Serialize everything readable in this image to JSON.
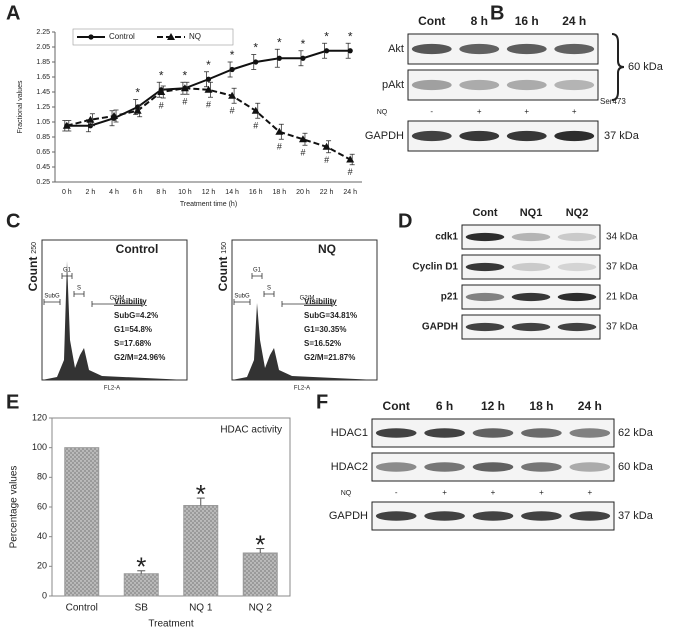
{
  "chart_data": [
    {
      "type": "line",
      "panel": "A",
      "x_label": "Treatment time (h)",
      "y_label": "Fractional values",
      "categories": [
        "0 h",
        "2 h",
        "4 h",
        "6 h",
        "8 h",
        "10 h",
        "12 h",
        "14 h",
        "16 h",
        "18 h",
        "20 h",
        "22 h",
        "24 h"
      ],
      "ylim": [
        0.25,
        2.25
      ],
      "yticks": [
        0.25,
        0.45,
        0.65,
        0.85,
        1.05,
        1.25,
        1.45,
        1.65,
        1.85,
        2.05,
        2.25
      ],
      "series": [
        {
          "name": "Control",
          "color": "#111111",
          "line_style": "solid",
          "marker": "circle",
          "values": [
            1.0,
            1.0,
            1.1,
            1.25,
            1.48,
            1.5,
            1.62,
            1.75,
            1.85,
            1.9,
            1.9,
            2.0,
            2.0
          ],
          "errors": [
            0.07,
            0.08,
            0.1,
            0.1,
            0.1,
            0.08,
            0.1,
            0.1,
            0.1,
            0.12,
            0.1,
            0.1,
            0.1
          ],
          "annotations": [
            null,
            null,
            null,
            "*",
            "*",
            "*",
            "*",
            "*",
            "*",
            "*",
            "*",
            "*",
            "*"
          ]
        },
        {
          "name": "NQ",
          "color": "#111111",
          "line_style": "dashed",
          "marker": "triangle",
          "values": [
            1.0,
            1.08,
            1.13,
            1.2,
            1.45,
            1.5,
            1.48,
            1.4,
            1.2,
            0.92,
            0.82,
            0.72,
            0.55
          ],
          "errors": [
            0.07,
            0.08,
            0.08,
            0.08,
            0.08,
            0.08,
            0.1,
            0.1,
            0.1,
            0.1,
            0.08,
            0.08,
            0.07
          ],
          "annotations": [
            null,
            null,
            null,
            null,
            "#",
            "#",
            "#",
            "#",
            "#",
            "#",
            "#",
            "#",
            "#"
          ]
        }
      ]
    },
    {
      "type": "bar",
      "panel": "E",
      "title": "HDAC activity",
      "x_label": "Treatment",
      "y_label": "Percentage values",
      "categories": [
        "Control",
        "SB",
        "NQ 1",
        "NQ 2"
      ],
      "values": [
        100,
        15,
        61,
        29
      ],
      "errors": [
        0,
        2,
        5,
        3
      ],
      "annotations": [
        null,
        "*",
        "*",
        "*"
      ],
      "color": "#9a9a9a",
      "ylim": [
        0,
        120
      ],
      "yticks": [
        0,
        20,
        40,
        60,
        80,
        100,
        120
      ]
    }
  ],
  "flow": {
    "panel": "C",
    "plots": [
      {
        "y_label": "Count",
        "count_max": "250",
        "title": "Control",
        "gates": [
          "SubG",
          "G1",
          "S",
          "G2/M"
        ],
        "x_label": "FL2-A",
        "stats_title": "Visibility",
        "stats": [
          "SubG=4.2%",
          "G1=54.8%",
          "S=17.68%",
          "G2/M=24.96%"
        ]
      },
      {
        "y_label": "Count",
        "count_max": "150",
        "title": "NQ",
        "gates": [
          "SubG",
          "G1",
          "S",
          "G2/M"
        ],
        "x_label": "FL2-A",
        "stats_title": "Visibility",
        "stats": [
          "SubG=34.81%",
          "G1=30.35%",
          "S=16.52%",
          "G2/M=21.87%"
        ]
      }
    ]
  },
  "blots": [
    {
      "panel": "B",
      "columns": [
        "Cont",
        "8 h",
        "16 h",
        "24 h"
      ],
      "bracket_label": "60 kDa",
      "rows": [
        {
          "label": "Akt"
        },
        {
          "label": "pAkt",
          "note": "Ser473"
        },
        {
          "label": "NQ",
          "signs": [
            "-",
            "+",
            "+",
            "+"
          ]
        },
        {
          "label": "GAPDH",
          "size": "37 kDa"
        }
      ]
    },
    {
      "panel": "D",
      "columns": [
        "Cont",
        "NQ1",
        "NQ2"
      ],
      "rows": [
        {
          "label": "cdk1",
          "size": "34 kDa"
        },
        {
          "label": "Cyclin D1",
          "size": "37 kDa"
        },
        {
          "label": "p21",
          "size": "21 kDa"
        },
        {
          "label": "GAPDH",
          "size": "37 kDa"
        }
      ]
    },
    {
      "panel": "F",
      "columns": [
        "Cont",
        "6 h",
        "12 h",
        "18 h",
        "24 h"
      ],
      "rows": [
        {
          "label": "HDAC1",
          "size": "62 kDa"
        },
        {
          "label": "HDAC2",
          "size": "60 kDa"
        },
        {
          "label": "NQ",
          "signs": [
            "-",
            "+",
            "+",
            "+",
            "+"
          ]
        },
        {
          "label": "GAPDH",
          "size": "37 kDa"
        }
      ]
    }
  ]
}
